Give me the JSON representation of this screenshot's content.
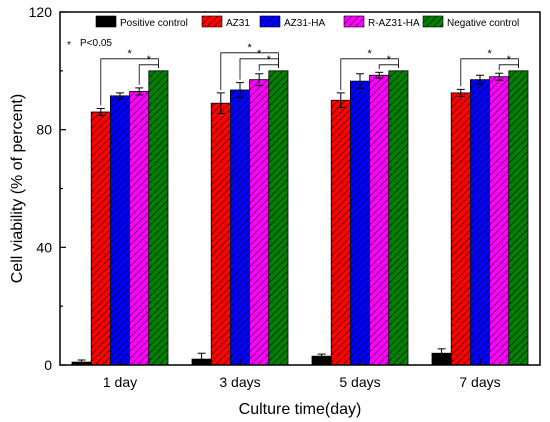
{
  "chart_data": {
    "type": "bar",
    "xlabel": "Culture time(day)",
    "ylabel": "Cell viability (% of percent)",
    "ylim": [
      0,
      120
    ],
    "yticks": [
      0,
      40,
      80,
      120
    ],
    "categories": [
      "1 day",
      "3 days",
      "5 days",
      "7 days"
    ],
    "series": [
      {
        "name": "Positive control",
        "color": "#000000",
        "pattern": "solid",
        "values": [
          1,
          2,
          3,
          4
        ],
        "errors": [
          0.7,
          2,
          0.7,
          1.5
        ]
      },
      {
        "name": "AZ31",
        "color": "#ff0000",
        "pattern": "hatch",
        "values": [
          86,
          89,
          90,
          92.5
        ],
        "errors": [
          1.2,
          3.5,
          2.5,
          1.2
        ]
      },
      {
        "name": "AZ31-HA",
        "color": "#0000ff",
        "pattern": "hatch",
        "values": [
          91.5,
          93.5,
          96.5,
          97
        ],
        "errors": [
          1,
          2.5,
          2.5,
          1.5
        ]
      },
      {
        "name": "R-AZ31-HA",
        "color": "#ff00ff",
        "pattern": "hatch",
        "values": [
          93,
          97,
          98.5,
          98
        ],
        "errors": [
          1.2,
          2,
          1,
          1.2
        ]
      },
      {
        "name": "Negative control",
        "color": "#008000",
        "pattern": "hatch",
        "values": [
          100,
          100,
          100,
          100
        ],
        "errors": [
          0,
          0,
          0,
          0
        ]
      }
    ],
    "significance": [
      {
        "category": 0,
        "pairs": [
          [
            1,
            4
          ],
          [
            3,
            4
          ]
        ],
        "label": "*"
      },
      {
        "category": 1,
        "pairs": [
          [
            1,
            4
          ],
          [
            2,
            4
          ],
          [
            3,
            4
          ]
        ],
        "label": "*"
      },
      {
        "category": 2,
        "pairs": [
          [
            1,
            4
          ],
          [
            3,
            4
          ]
        ],
        "label": "*"
      },
      {
        "category": 3,
        "pairs": [
          [
            1,
            4
          ],
          [
            3,
            4
          ]
        ],
        "label": "*"
      }
    ],
    "note": "P<0.05",
    "note_marker": "*",
    "legend_position": "top",
    "grid": false
  }
}
